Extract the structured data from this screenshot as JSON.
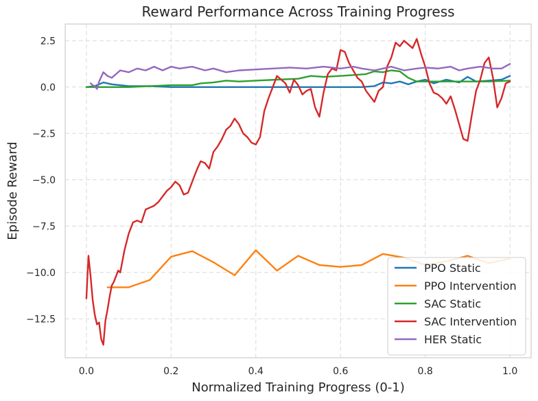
{
  "chart_data": {
    "type": "line",
    "title": "Reward Performance Across Training Progress",
    "xlabel": "Normalized Training Progress (0-1)",
    "ylabel": "Episode Reward",
    "xlim": [
      -0.05,
      1.05
    ],
    "ylim": [
      -14.6,
      3.4
    ],
    "xticks": [
      0.0,
      0.2,
      0.4,
      0.6,
      0.8,
      1.0
    ],
    "xtick_labels": [
      "0.0",
      "0.2",
      "0.4",
      "0.6",
      "0.8",
      "1.0"
    ],
    "yticks": [
      -12.5,
      -10.0,
      -7.5,
      -5.0,
      -2.5,
      0.0,
      2.5
    ],
    "ytick_labels": [
      "−12.5",
      "−10.0",
      "−7.5",
      "−5.0",
      "−2.5",
      "0.0",
      "2.5"
    ],
    "grid": true,
    "legend_position": "lower-right",
    "series": [
      {
        "name": "PPO Static",
        "color": "#1f77b4",
        "x": [
          0.0,
          0.02,
          0.04,
          0.06,
          0.08,
          0.1,
          0.15,
          0.2,
          0.25,
          0.3,
          0.35,
          0.4,
          0.45,
          0.5,
          0.55,
          0.6,
          0.65,
          0.68,
          0.7,
          0.72,
          0.74,
          0.76,
          0.78,
          0.8,
          0.82,
          0.85,
          0.88,
          0.9,
          0.92,
          0.95,
          0.98,
          1.0
        ],
        "y": [
          0.0,
          0.05,
          0.25,
          0.15,
          0.1,
          0.05,
          0.05,
          0.0,
          0.0,
          0.0,
          0.0,
          0.0,
          0.0,
          0.0,
          0.0,
          0.0,
          0.0,
          0.05,
          0.25,
          0.2,
          0.3,
          0.15,
          0.3,
          0.4,
          0.2,
          0.4,
          0.25,
          0.55,
          0.3,
          0.35,
          0.4,
          0.6
        ]
      },
      {
        "name": "PPO Intervention",
        "color": "#ff7f0e",
        "x": [
          0.05,
          0.1,
          0.15,
          0.2,
          0.25,
          0.3,
          0.35,
          0.4,
          0.45,
          0.5,
          0.55,
          0.6,
          0.65,
          0.7,
          0.75,
          0.8,
          0.85,
          0.9,
          0.95,
          1.0
        ],
        "y": [
          -10.8,
          -10.8,
          -10.4,
          -9.15,
          -8.85,
          -9.45,
          -10.15,
          -8.8,
          -9.9,
          -9.1,
          -9.6,
          -9.7,
          -9.6,
          -9.0,
          -9.2,
          -9.6,
          -9.4,
          -9.1,
          -9.5,
          -9.25
        ]
      },
      {
        "name": "SAC Static",
        "color": "#2ca02c",
        "x": [
          0.0,
          0.1,
          0.15,
          0.2,
          0.25,
          0.27,
          0.3,
          0.33,
          0.36,
          0.4,
          0.45,
          0.5,
          0.53,
          0.56,
          0.6,
          0.63,
          0.66,
          0.68,
          0.7,
          0.72,
          0.74,
          0.76,
          0.78,
          0.8,
          0.85,
          0.9,
          0.95,
          1.0
        ],
        "y": [
          0.0,
          0.0,
          0.05,
          0.1,
          0.1,
          0.2,
          0.25,
          0.35,
          0.3,
          0.35,
          0.4,
          0.45,
          0.6,
          0.55,
          0.6,
          0.65,
          0.7,
          0.85,
          0.8,
          0.9,
          0.85,
          0.5,
          0.3,
          0.3,
          0.3,
          0.3,
          0.3,
          0.35
        ]
      },
      {
        "name": "SAC Intervention",
        "color": "#d62728",
        "x": [
          0.0,
          0.005,
          0.01,
          0.015,
          0.02,
          0.025,
          0.03,
          0.035,
          0.04,
          0.045,
          0.05,
          0.055,
          0.06,
          0.065,
          0.07,
          0.075,
          0.08,
          0.09,
          0.1,
          0.11,
          0.12,
          0.13,
          0.14,
          0.15,
          0.16,
          0.17,
          0.18,
          0.19,
          0.2,
          0.21,
          0.22,
          0.23,
          0.24,
          0.25,
          0.26,
          0.27,
          0.28,
          0.29,
          0.3,
          0.31,
          0.32,
          0.33,
          0.34,
          0.35,
          0.36,
          0.37,
          0.38,
          0.39,
          0.4,
          0.41,
          0.42,
          0.43,
          0.44,
          0.45,
          0.46,
          0.47,
          0.48,
          0.49,
          0.5,
          0.51,
          0.52,
          0.53,
          0.54,
          0.55,
          0.56,
          0.57,
          0.58,
          0.59,
          0.6,
          0.61,
          0.62,
          0.63,
          0.64,
          0.65,
          0.66,
          0.67,
          0.68,
          0.69,
          0.7,
          0.71,
          0.72,
          0.73,
          0.74,
          0.75,
          0.76,
          0.77,
          0.78,
          0.79,
          0.8,
          0.81,
          0.82,
          0.83,
          0.84,
          0.85,
          0.86,
          0.87,
          0.88,
          0.89,
          0.9,
          0.91,
          0.92,
          0.93,
          0.94,
          0.95,
          0.96,
          0.97,
          0.98,
          0.99,
          1.0
        ],
        "y": [
          -11.4,
          -9.1,
          -10.2,
          -11.5,
          -12.3,
          -12.8,
          -12.7,
          -13.6,
          -13.9,
          -12.6,
          -12.0,
          -11.3,
          -10.7,
          -10.5,
          -10.2,
          -9.9,
          -10.0,
          -8.8,
          -7.9,
          -7.3,
          -7.2,
          -7.3,
          -6.6,
          -6.5,
          -6.4,
          -6.2,
          -5.9,
          -5.6,
          -5.4,
          -5.1,
          -5.3,
          -5.8,
          -5.7,
          -5.1,
          -4.5,
          -4.0,
          -4.1,
          -4.4,
          -3.5,
          -3.2,
          -2.8,
          -2.3,
          -2.1,
          -1.7,
          -2.0,
          -2.5,
          -2.7,
          -3.0,
          -3.1,
          -2.7,
          -1.3,
          -0.6,
          0.0,
          0.6,
          0.4,
          0.2,
          -0.3,
          0.4,
          0.1,
          -0.4,
          -0.2,
          -0.1,
          -1.1,
          -1.6,
          -0.3,
          0.7,
          1.0,
          0.9,
          2.0,
          1.9,
          1.3,
          0.9,
          0.5,
          0.3,
          -0.2,
          -0.5,
          -0.8,
          -0.2,
          0.0,
          1.1,
          1.6,
          2.4,
          2.2,
          2.5,
          2.3,
          2.1,
          2.6,
          1.8,
          1.1,
          0.2,
          -0.3,
          -0.4,
          -0.6,
          -0.9,
          -0.5,
          -1.2,
          -2.0,
          -2.8,
          -2.9,
          -1.5,
          -0.2,
          0.4,
          1.3,
          1.6,
          0.5,
          -1.1,
          -0.6,
          0.2,
          0.3
        ]
      },
      {
        "name": "HER Static",
        "color": "#9467bd",
        "x": [
          0.01,
          0.015,
          0.02,
          0.025,
          0.03,
          0.04,
          0.05,
          0.06,
          0.08,
          0.1,
          0.12,
          0.14,
          0.16,
          0.18,
          0.2,
          0.22,
          0.25,
          0.28,
          0.3,
          0.33,
          0.36,
          0.4,
          0.44,
          0.48,
          0.52,
          0.56,
          0.6,
          0.63,
          0.65,
          0.68,
          0.7,
          0.72,
          0.75,
          0.78,
          0.8,
          0.83,
          0.86,
          0.88,
          0.9,
          0.93,
          0.96,
          0.98,
          1.0
        ],
        "y": [
          0.2,
          0.1,
          0.05,
          -0.1,
          0.3,
          0.8,
          0.6,
          0.5,
          0.9,
          0.8,
          1.0,
          0.9,
          1.1,
          0.9,
          1.1,
          1.0,
          1.1,
          0.9,
          1.0,
          0.8,
          0.9,
          0.95,
          1.0,
          1.05,
          1.0,
          1.1,
          1.0,
          1.1,
          1.0,
          0.9,
          1.0,
          1.1,
          0.9,
          1.0,
          1.05,
          1.0,
          1.1,
          0.9,
          1.0,
          1.1,
          1.0,
          1.0,
          1.25
        ]
      }
    ]
  }
}
